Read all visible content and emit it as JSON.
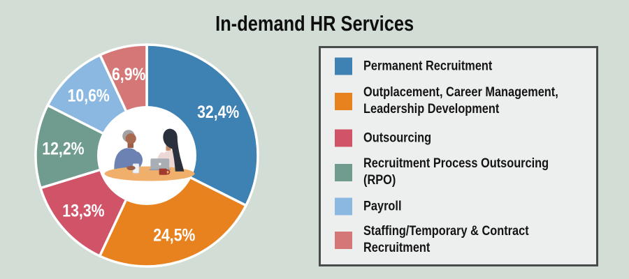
{
  "page": {
    "title": "In-demand HR Services",
    "background_color": "#d2ddd6",
    "legend_box_color": "#edefee",
    "legend_border_color": "#474c4b"
  },
  "chart_data": {
    "type": "pie",
    "subtype": "donut",
    "title": "In-demand HR Services",
    "start_angle_deg": 0,
    "direction": "clockwise",
    "legend_position": "right",
    "center_illustration": "two-people-meeting-at-table",
    "series": [
      {
        "label": "Permanent Recruitment",
        "value": 32.4,
        "display": "32,4%",
        "color": "#3e81b3",
        "legend_lines": [
          "Permanent Recruitment"
        ]
      },
      {
        "label": "Outplacement, Career Management, Leadership Development",
        "value": 24.5,
        "display": "24,5%",
        "color": "#e8821f",
        "legend_lines": [
          "Outplacement, Career Management,",
          "Leadership Development"
        ]
      },
      {
        "label": "Outsourcing",
        "value": 13.3,
        "display": "13,3%",
        "color": "#d15368",
        "legend_lines": [
          "Outsourcing"
        ]
      },
      {
        "label": "Recruitment Process Outsourcing (RPO)",
        "value": 12.2,
        "display": "12,2%",
        "color": "#6f9c8f",
        "legend_lines": [
          "Recruitment Process Outsourcing (RPO)"
        ]
      },
      {
        "label": "Payroll",
        "value": 10.6,
        "display": "10,6%",
        "color": "#8bb8e0",
        "legend_lines": [
          "Payroll"
        ]
      },
      {
        "label": "Staffing/Temporary & Contract Recruitment",
        "value": 6.9,
        "display": "6,9%",
        "color": "#d57777",
        "legend_lines": [
          "Staffing/Temporary & Contract Recruitment"
        ]
      }
    ]
  }
}
